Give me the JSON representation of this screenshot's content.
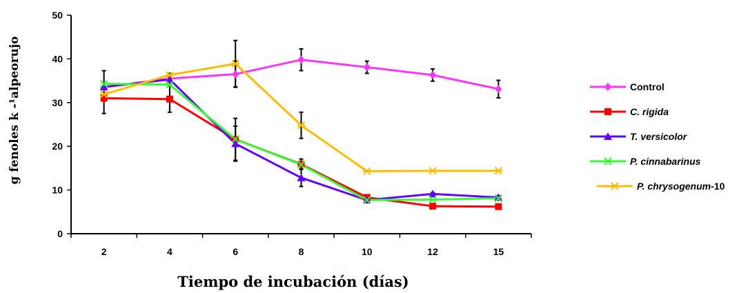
{
  "chart_data": {
    "type": "line",
    "xlabel": "Tiempo de incubación (días)",
    "ylabel": "g fenoles  k -¹alpeorujo",
    "categories": [
      "2",
      "4",
      "6",
      "8",
      "10",
      "12",
      "15"
    ],
    "ylim": [
      0,
      50
    ],
    "yticks": [
      0,
      10,
      20,
      30,
      40,
      50
    ],
    "grid": false,
    "legend_position": "right",
    "series": [
      {
        "name": "Control",
        "name_parts": [
          {
            "text": "Control",
            "italic": false
          }
        ],
        "color": "#ff33ff",
        "marker": "diamond",
        "values": [
          33.5,
          35.5,
          36.5,
          39.8,
          38.1,
          36.3,
          33.1
        ],
        "errors": [
          0,
          1.2,
          3.0,
          2.5,
          1.4,
          1.4,
          2.0
        ]
      },
      {
        "name": "C. rigida",
        "name_parts": [
          {
            "text": "C. rigida",
            "italic": true
          }
        ],
        "color": "#ff0000",
        "marker": "square",
        "values": [
          31.0,
          30.8,
          21.6,
          15.9,
          8.3,
          6.3,
          6.2
        ],
        "errors": [
          3.5,
          3.0,
          0,
          1.2,
          0.5,
          0.4,
          0.4
        ]
      },
      {
        "name": "T. versicolor",
        "name_parts": [
          {
            "text": "T. versicolor",
            "italic": true
          }
        ],
        "color": "#6600ff",
        "marker": "triangle",
        "values": [
          33.6,
          35.3,
          20.6,
          12.8,
          7.7,
          9.1,
          8.3
        ],
        "errors": [
          0,
          0,
          4.0,
          2.0,
          0.3,
          0.3,
          0.4
        ]
      },
      {
        "name": "P. cinnabarinus",
        "name_parts": [
          {
            "text": "P. cinnabarinus",
            "italic": true
          }
        ],
        "color": "#33ff33",
        "marker": "x",
        "values": [
          34.3,
          34.1,
          21.6,
          15.8,
          7.7,
          7.8,
          8.1
        ],
        "errors": [
          3.0,
          0,
          4.8,
          0,
          0,
          0,
          0
        ]
      },
      {
        "name": "P. chrysogenum-10",
        "name_parts": [
          {
            "text": "P. chrysogenum",
            "italic": true
          },
          {
            "text": "-10",
            "italic": false
          }
        ],
        "color": "#ffbb00",
        "marker": "asterisk",
        "values": [
          31.9,
          36.3,
          38.9,
          24.8,
          14.3,
          14.4,
          14.4
        ],
        "errors": [
          0,
          0,
          5.3,
          3.0,
          0,
          0,
          0
        ]
      }
    ]
  }
}
